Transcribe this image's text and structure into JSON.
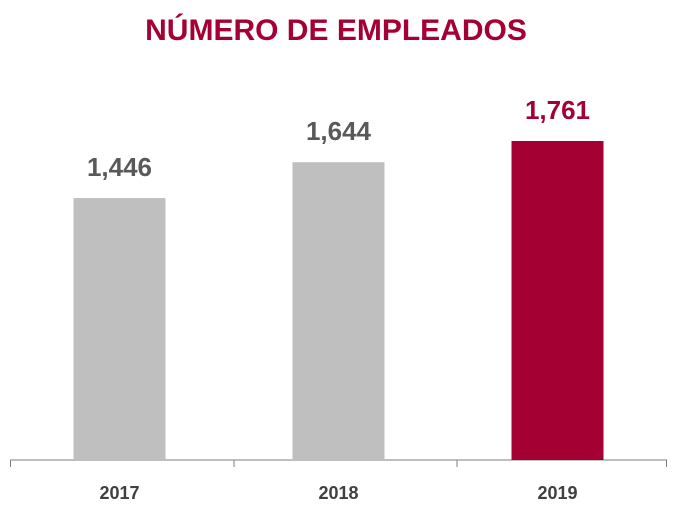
{
  "chart_data": {
    "type": "bar",
    "title": "NÚMERO DE EMPLEADOS",
    "categories": [
      "2017",
      "2018",
      "2019"
    ],
    "values": [
      1446,
      1644,
      1761
    ],
    "value_labels": [
      "1,446",
      "1,644",
      "1,761"
    ],
    "colors": [
      "#bfbfbf",
      "#bfbfbf",
      "#a50034"
    ],
    "value_label_colors": [
      "#595959",
      "#595959",
      "#a50034"
    ]
  }
}
